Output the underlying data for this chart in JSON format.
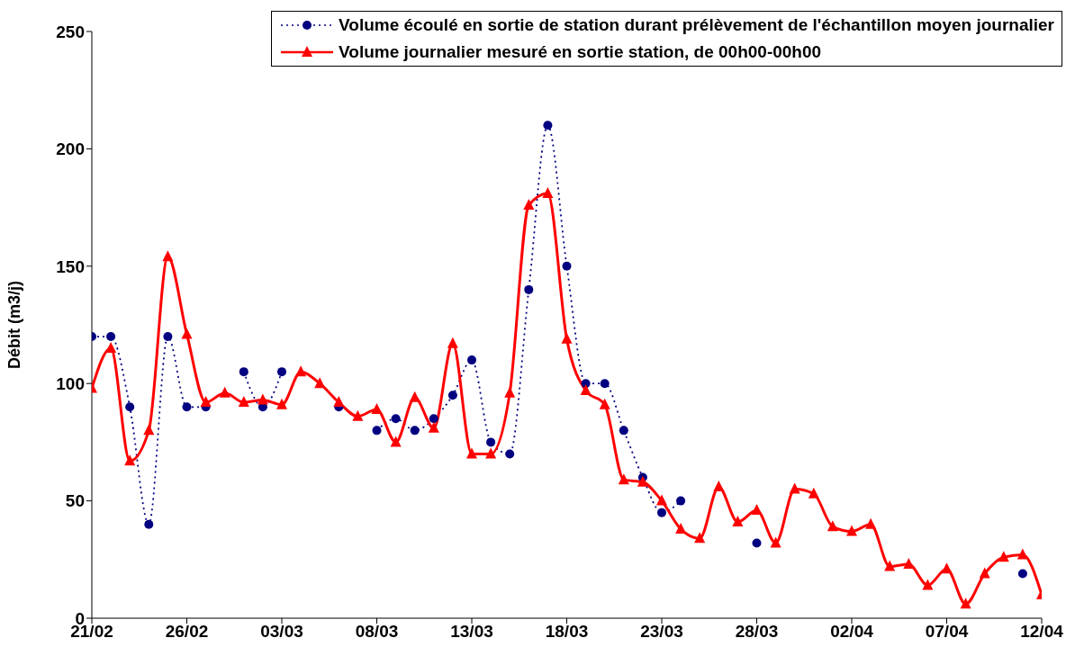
{
  "chart_data": {
    "type": "line",
    "ylabel": "Débit (m3/j)",
    "x": [
      "--02-21",
      "--02-22",
      "--02-23",
      "--02-24",
      "--02-25",
      "--02-26",
      "--02-27",
      "--02-28",
      "--03-01",
      "--03-02",
      "--03-03",
      "--03-04",
      "--03-05",
      "--03-06",
      "--03-07",
      "--03-08",
      "--03-09",
      "--03-10",
      "--03-11",
      "--03-12",
      "--03-13",
      "--03-14",
      "--03-15",
      "--03-16",
      "--03-17",
      "--03-18",
      "--03-19",
      "--03-20",
      "--03-21",
      "--03-22",
      "--03-23",
      "--03-24",
      "--03-25",
      "--03-26",
      "--03-27",
      "--03-28",
      "--03-29",
      "--03-30",
      "--03-31",
      "--04-01",
      "--04-02",
      "--04-03",
      "--04-04",
      "--04-05",
      "--04-06",
      "--04-07",
      "--04-08",
      "--04-09",
      "--04-10",
      "--04-11",
      "--04-12"
    ],
    "series": [
      {
        "name": "Volume écoulé en sortie de station durant prélèvement de l'échantillon moyen journalier",
        "color": "#000080",
        "marker": "circle",
        "line_style": "dotted",
        "values": [
          120,
          120,
          90,
          40,
          120,
          90,
          90,
          null,
          105,
          90,
          105,
          null,
          null,
          90,
          null,
          80,
          85,
          80,
          85,
          95,
          110,
          75,
          70,
          140,
          210,
          150,
          100,
          100,
          80,
          60,
          45,
          50,
          null,
          null,
          null,
          32,
          null,
          null,
          null,
          null,
          null,
          null,
          null,
          null,
          null,
          null,
          null,
          null,
          null,
          19,
          null
        ]
      },
      {
        "name": "Volume journalier mesuré en sortie station, de 00h00-00h00",
        "color": "#ff0000",
        "marker": "triangle",
        "line_style": "solid",
        "values": [
          98,
          115,
          67,
          80,
          154,
          121,
          92,
          96,
          92,
          93,
          91,
          105,
          100,
          92,
          86,
          89,
          75,
          94,
          81,
          117,
          70,
          70,
          96,
          176,
          181,
          119,
          97,
          91,
          59,
          58,
          50,
          38,
          34,
          56,
          41,
          46,
          32,
          55,
          53,
          39,
          37,
          40,
          22,
          23,
          14,
          21,
          6,
          19,
          26,
          27,
          10
        ]
      }
    ],
    "xlim": [
      "--02-21",
      "--04-12"
    ],
    "xticks": [
      {
        "value": "--02-21",
        "label": "21/02"
      },
      {
        "value": "--02-26",
        "label": "26/02"
      },
      {
        "value": "--03-03",
        "label": "03/03"
      },
      {
        "value": "--03-08",
        "label": "08/03"
      },
      {
        "value": "--03-13",
        "label": "13/03"
      },
      {
        "value": "--03-18",
        "label": "18/03"
      },
      {
        "value": "--03-23",
        "label": "23/03"
      },
      {
        "value": "--03-28",
        "label": "28/03"
      },
      {
        "value": "--04-02",
        "label": "02/04"
      },
      {
        "value": "--04-07",
        "label": "07/04"
      },
      {
        "value": "--04-12",
        "label": "12/04"
      }
    ],
    "ylim": [
      0,
      250
    ],
    "yticks": [
      0,
      50,
      100,
      150,
      200,
      250
    ],
    "grid": false,
    "legend": "top right"
  }
}
